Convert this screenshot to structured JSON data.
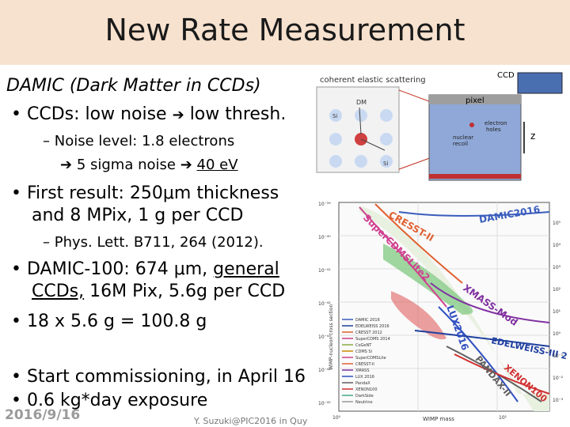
{
  "title": "New Rate Measurement",
  "heading": "DAMIC (Dark Matter in CCDs)",
  "bullets": {
    "b1": "CCDs: low noise",
    "b1_tail": "low thresh.",
    "sub1_a": "Noise level: 1.8 electrons",
    "sub1_b": "5 sigma noise",
    "sub1_c": "40 eV",
    "b2_a": "First result: 250μm thickness",
    "b2_b": "and 8 MPix, 1 g per CCD",
    "sub2": "Phys. Lett. B711, 264 (2012).",
    "b3_a": "DAMIC-100: 674 μm,",
    "b3_ul1": "general",
    "b3_ul2": "CCDs,",
    "b3_b_tail": "16M Pix, 5.6g per CCD",
    "b4": "18 x 5.6 g = 100.8 g",
    "b5": "Start commissioning, in April 16",
    "b6": "0.6 kg*day exposure"
  },
  "diagram": {
    "label_scatter": "coherent elastic scattering",
    "label_ccd": "CCD",
    "label_pixel": "pixel",
    "label_dm": "DM",
    "atom": "Si",
    "label_electron": "electron",
    "label_holes": "holes",
    "label_nuclear": "nuclear",
    "label_recoil": "recoil",
    "label_z": "z"
  },
  "plot": {
    "xlabel": "WIMP mass",
    "ylabel": "WIMP-nucleon cross section",
    "yticks": [
      "10⁻³⁹",
      "10⁻⁴⁰",
      "10⁻⁴¹",
      "10⁻⁴²",
      "10⁻⁴³",
      "10⁻⁴⁴",
      "10⁻⁴⁵"
    ],
    "yticks_right": [
      "10⁵",
      "10⁴",
      "10³",
      "10²",
      "10¹",
      "10⁰",
      "10⁻¹",
      "10⁻²",
      "10⁻³"
    ],
    "xticks": [
      "10⁰",
      "10¹"
    ],
    "curve_labels": {
      "cresst": "CRESST-II",
      "supercdms": "SuperCDMSLite2",
      "damic": "DAMIC2016",
      "xmass": "XMASS-Mod",
      "lux": "LUX2016",
      "edelweiss": "EDELWEISS-III 2016",
      "pandax": "PANDAX-II",
      "xenon": "XENON100"
    },
    "legend": [
      "DAMIC 2016",
      "EDELWEISS 2016",
      "CRESST 2012",
      "SuperCDMS 2014",
      "CoGeNT",
      "CDMS Si",
      "SuperCDMSLite",
      "CRESST-II",
      "XMASS",
      "LUX 2016",
      "PandaX",
      "XENON100",
      "DarkSide",
      "Neutrino"
    ]
  },
  "colors": {
    "title_bg": "#f7e2cf",
    "underline_text": "#000000"
  },
  "footer": {
    "date": "2016/9/16",
    "center": "Y. Suzuki@PIC2016 in Quy"
  }
}
